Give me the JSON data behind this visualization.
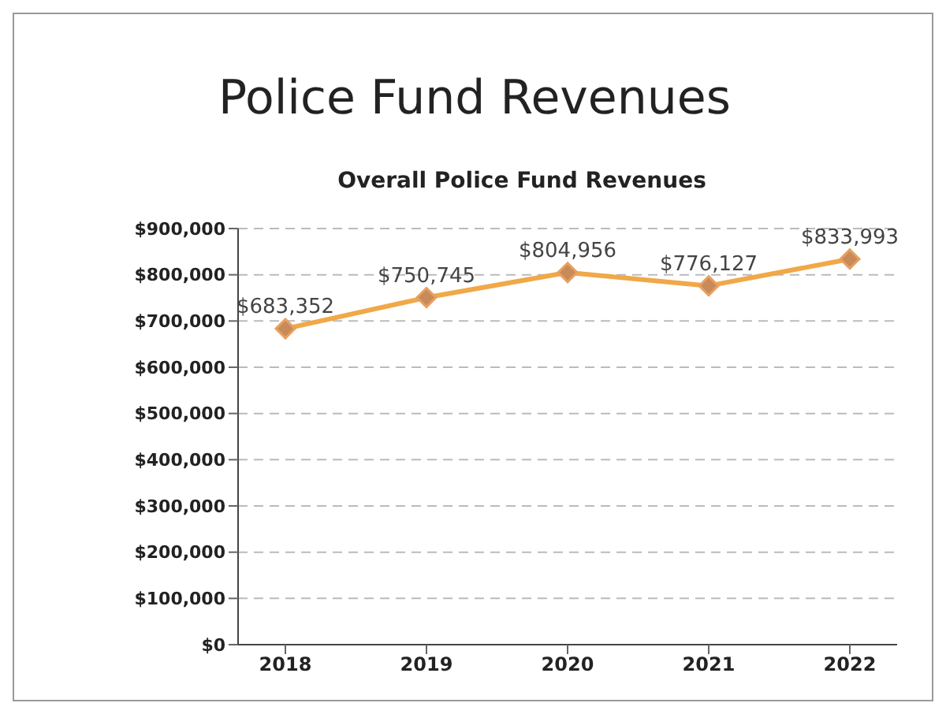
{
  "chart_data": {
    "type": "line",
    "title": "Police Fund Revenues",
    "subtitle": "Overall Police Fund Revenues",
    "categories": [
      "2018",
      "2019",
      "2020",
      "2021",
      "2022"
    ],
    "series": [
      {
        "color": "#f0a848",
        "values": [
          683352,
          750745,
          804956,
          776127,
          833993
        ],
        "value_labels": [
          "$683,352",
          "$750,745",
          "$804,956",
          "$776,127",
          "$833,993"
        ]
      }
    ],
    "ylim": [
      0,
      900000
    ],
    "yticks": [
      {
        "value": 0,
        "label": "$0"
      },
      {
        "value": 100000,
        "label": "$100,000"
      },
      {
        "value": 200000,
        "label": "$200,000"
      },
      {
        "value": 300000,
        "label": "$300,000"
      },
      {
        "value": 400000,
        "label": "$400,000"
      },
      {
        "value": 500000,
        "label": "$500,000"
      },
      {
        "value": 600000,
        "label": "$600,000"
      },
      {
        "value": 700000,
        "label": "$700,000"
      },
      {
        "value": 800000,
        "label": "$800,000"
      },
      {
        "value": 900000,
        "label": "$900,000"
      }
    ],
    "grid": "y",
    "marker": "diamond",
    "line_style": "solid",
    "legend": false
  }
}
